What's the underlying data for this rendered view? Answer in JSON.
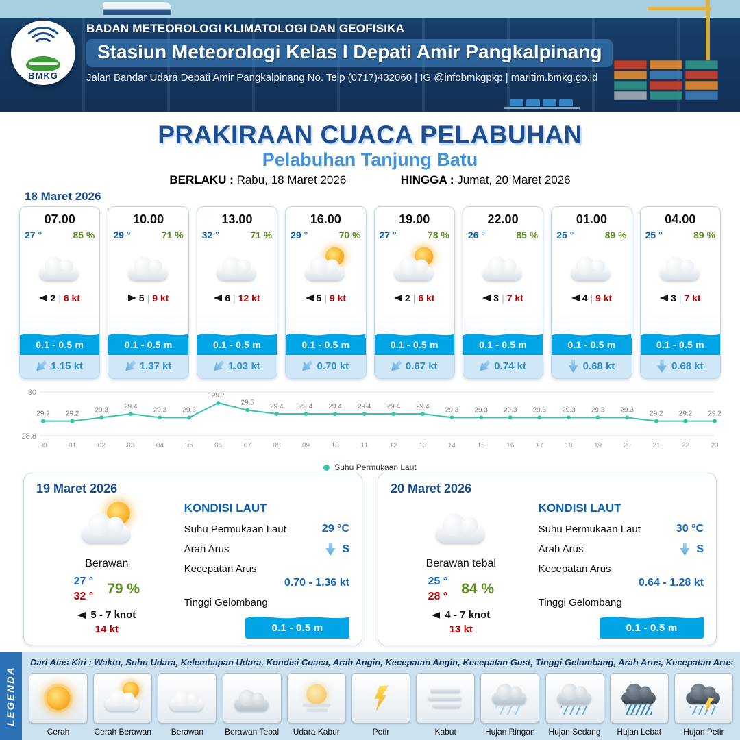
{
  "colors": {
    "accent_blue": "#0a62b5",
    "humidity_green": "#5a8f1f",
    "wind_red": "#c00000",
    "wave_blue": "#00a5e5",
    "sst_line_teal": "#35c4a8",
    "header_navy": "#17436f"
  },
  "header": {
    "agency": "BADAN METEOROLOGI KLIMATOLOGI DAN GEOFISIKA",
    "station": "Stasiun Meteorologi Kelas I Depati Amir Pangkalpinang",
    "address": "Jalan Bandar Udara Depati Amir Pangkalpinang No. Telp (0717)432060 | IG @infobmkgpkp | maritim.bmkg.go.id",
    "logo_text": "BMKG"
  },
  "title": {
    "main": "PRAKIRAAN CUACA PELABUHAN",
    "subtitle": "Pelabuhan Tanjung Batu",
    "valid_from_label": "BERLAKU :",
    "valid_from": "Rabu, 18 Maret 2026",
    "valid_to_label": "HINGGA :",
    "valid_to": "Jumat, 20 Maret 2026"
  },
  "forecast": {
    "date": "18 Maret 2026",
    "wind_separator": "|",
    "cards": [
      {
        "time": "07.00",
        "temp": "27 °",
        "humidity": "85 %",
        "icon": "cloud",
        "wind_dir_deg": 180,
        "wind_num": "2",
        "wind_speed": "6 kt",
        "wave": "0.1 - 0.5 m",
        "current_dir_deg": 45,
        "current_speed": "1.15 kt"
      },
      {
        "time": "10.00",
        "temp": "29 °",
        "humidity": "71 %",
        "icon": "cloud",
        "wind_dir_deg": 0,
        "wind_num": "5",
        "wind_speed": "9 kt",
        "wave": "0.1 - 0.5 m",
        "current_dir_deg": 45,
        "current_speed": "1.37 kt"
      },
      {
        "time": "13.00",
        "temp": "32 °",
        "humidity": "71 %",
        "icon": "cloud",
        "wind_dir_deg": 180,
        "wind_num": "6",
        "wind_speed": "12 kt",
        "wave": "0.1 - 0.5 m",
        "current_dir_deg": 45,
        "current_speed": "1.03 kt"
      },
      {
        "time": "16.00",
        "temp": "29 °",
        "humidity": "70 %",
        "icon": "partly",
        "wind_dir_deg": 180,
        "wind_num": "5",
        "wind_speed": "9 kt",
        "wave": "0.1 - 0.5 m",
        "current_dir_deg": 45,
        "current_speed": "0.70 kt"
      },
      {
        "time": "19.00",
        "temp": "27 °",
        "humidity": "78 %",
        "icon": "partly",
        "wind_dir_deg": 180,
        "wind_num": "2",
        "wind_speed": "6 kt",
        "wave": "0.1 - 0.5 m",
        "current_dir_deg": 45,
        "current_speed": "0.67 kt"
      },
      {
        "time": "22.00",
        "temp": "26 °",
        "humidity": "85 %",
        "icon": "cloud",
        "wind_dir_deg": 180,
        "wind_num": "3",
        "wind_speed": "7 kt",
        "wave": "0.1 - 0.5 m",
        "current_dir_deg": 45,
        "current_speed": "0.74 kt"
      },
      {
        "time": "01.00",
        "temp": "25 °",
        "humidity": "89 %",
        "icon": "cloud",
        "wind_dir_deg": 180,
        "wind_num": "4",
        "wind_speed": "9 kt",
        "wave": "0.1 - 0.5 m",
        "current_dir_deg": 0,
        "current_speed": "0.68 kt"
      },
      {
        "time": "04.00",
        "temp": "25 °",
        "humidity": "89 %",
        "icon": "cloud",
        "wind_dir_deg": 180,
        "wind_num": "3",
        "wind_speed": "7 kt",
        "wave": "0.1 - 0.5 m",
        "current_dir_deg": 0,
        "current_speed": "0.68 kt"
      }
    ]
  },
  "chart_data": {
    "type": "line",
    "x": [
      "00",
      "01",
      "02",
      "03",
      "04",
      "05",
      "06",
      "07",
      "08",
      "09",
      "10",
      "11",
      "12",
      "13",
      "14",
      "15",
      "16",
      "17",
      "18",
      "19",
      "20",
      "21",
      "22",
      "23"
    ],
    "series": [
      {
        "name": "Suhu Permukaan Laut",
        "values": [
          29.2,
          29.2,
          29.3,
          29.4,
          29.3,
          29.3,
          29.7,
          29.5,
          29.4,
          29.4,
          29.4,
          29.4,
          29.4,
          29.4,
          29.3,
          29.3,
          29.3,
          29.3,
          29.3,
          29.3,
          29.3,
          29.2,
          29.2,
          29.2
        ]
      }
    ],
    "ylim": [
      28.8,
      30
    ],
    "y_ticks": [
      "30",
      "28.8"
    ],
    "grid": true,
    "legend_position": "bottom",
    "line_color": "#35c4a8",
    "title": "",
    "xlabel": "",
    "ylabel": ""
  },
  "daily": [
    {
      "date": "19 Maret 2026",
      "icon": "partly",
      "condition": "Berawan",
      "temp_min": "27 °",
      "temp_max": "32 °",
      "humidity": "79 %",
      "wind_range": "5  - 7 knot",
      "gust": "14 kt",
      "sea": {
        "heading": "KONDISI LAUT",
        "sst_label": "Suhu Permukaan Laut",
        "sst_value": "29 °C",
        "current_dir_label": "Arah Arus",
        "current_dir_value": "S",
        "current_speed_label": "Kecepatan Arus",
        "current_speed_value": "0.70  - 1.36 kt",
        "wave_label": "Tinggi Gelombang",
        "wave_value": "0.1 - 0.5 m"
      }
    },
    {
      "date": "20 Maret 2026",
      "icon": "cloud",
      "condition": "Berawan tebal",
      "temp_min": "25 °",
      "temp_max": "28 °",
      "humidity": "84 %",
      "wind_range": "4  - 7 knot",
      "gust": "13 kt",
      "sea": {
        "heading": "KONDISI LAUT",
        "sst_label": "Suhu Permukaan Laut",
        "sst_value": "30 °C",
        "current_dir_label": "Arah Arus",
        "current_dir_value": "S",
        "current_speed_label": "Kecepatan Arus",
        "current_speed_value": "0.64  - 1.28 kt",
        "wave_label": "Tinggi Gelombang",
        "wave_value": "0.1 - 0.5 m"
      }
    }
  ],
  "legend": {
    "title": "LEGENDA",
    "description": "Dari Atas Kiri : Waktu, Suhu Udara, Kelembapan Udara, Kondisi Cuaca, Arah Angin, Kecepatan Angin, Kecepatan Gust, Tinggi Gelombang, Arah Arus, Kecepatan Arus",
    "items": [
      {
        "label": "Cerah",
        "icon": "sun"
      },
      {
        "label": "Cerah Berawan",
        "icon": "suncloud"
      },
      {
        "label": "Berawan",
        "icon": "cloud"
      },
      {
        "label": "Berawan Tebal",
        "icon": "cloud-thick"
      },
      {
        "label": "Udara Kabur",
        "icon": "haze"
      },
      {
        "label": "Petir",
        "icon": "lightning"
      },
      {
        "label": "Kabut",
        "icon": "fog"
      },
      {
        "label": "Hujan Ringan",
        "icon": "rain-light"
      },
      {
        "label": "Hujan Sedang",
        "icon": "rain-med"
      },
      {
        "label": "Hujan Lebat",
        "icon": "rain-heavy"
      },
      {
        "label": "Hujan Petir",
        "icon": "thunderstorm"
      }
    ]
  }
}
